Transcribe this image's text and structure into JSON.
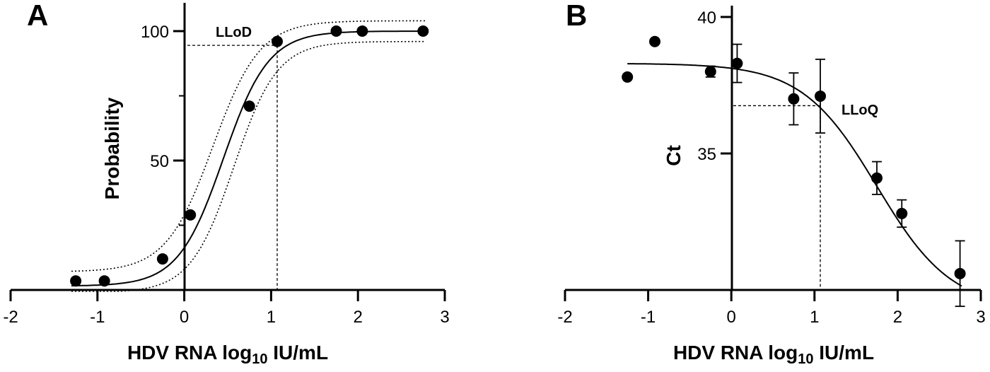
{
  "chart_data": [
    {
      "panel": "A",
      "type": "scatter",
      "title": "",
      "xlabel_main": "HDV RNA log",
      "xlabel_sub": "10",
      "xlabel_tail": " IU/mL",
      "ylabel": "Probability",
      "xlim": [
        -2,
        3
      ],
      "ylim": [
        0,
        105
      ],
      "xticks": [
        "-2",
        "-1",
        "0",
        "1",
        "2",
        "3"
      ],
      "yticks": [
        "50",
        "100"
      ],
      "points": [
        {
          "x": -1.25,
          "y": 3.5
        },
        {
          "x": -0.92,
          "y": 3.5
        },
        {
          "x": -0.25,
          "y": 12
        },
        {
          "x": 0.07,
          "y": 29
        },
        {
          "x": 0.75,
          "y": 71
        },
        {
          "x": 1.07,
          "y": 96
        },
        {
          "x": 1.75,
          "y": 100
        },
        {
          "x": 2.05,
          "y": 100
        },
        {
          "x": 2.75,
          "y": 100
        }
      ],
      "fit": "probit sigmoid with dotted confidence band",
      "annotation": {
        "label": "LLoD",
        "x": 1.07,
        "y": 94.5
      },
      "grid": false
    },
    {
      "panel": "B",
      "type": "scatter",
      "title": "",
      "xlabel_main": "HDV RNA log",
      "xlabel_sub": "10",
      "xlabel_tail": " IU/mL",
      "ylabel": "Ct",
      "xlim": [
        -2,
        3
      ],
      "ylim": [
        30,
        40
      ],
      "xticks": [
        "-2",
        "-1",
        "0",
        "1",
        "2",
        "3"
      ],
      "yticks": [
        "35",
        "40"
      ],
      "points": [
        {
          "x": -1.25,
          "y": 37.8,
          "err": 0
        },
        {
          "x": -0.92,
          "y": 39.1,
          "err": 0
        },
        {
          "x": -0.25,
          "y": 38.0,
          "err": 0.2
        },
        {
          "x": 0.07,
          "y": 38.3,
          "err": 0.7
        },
        {
          "x": 0.75,
          "y": 37.0,
          "err": 0.95
        },
        {
          "x": 1.07,
          "y": 37.1,
          "err": 1.35
        },
        {
          "x": 1.75,
          "y": 34.1,
          "err": 0.6
        },
        {
          "x": 2.05,
          "y": 32.8,
          "err": 0.5
        },
        {
          "x": 2.75,
          "y": 30.6,
          "err": 1.2
        }
      ],
      "fit": "sigmoid",
      "annotation": {
        "label": "LLoQ",
        "x": 1.07,
        "y": 36.75
      },
      "grid": false
    }
  ],
  "panel_letters": [
    "A",
    "B"
  ]
}
